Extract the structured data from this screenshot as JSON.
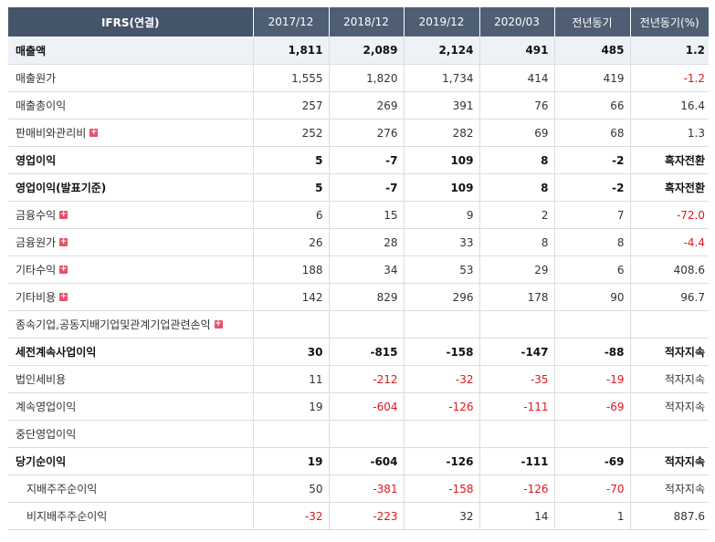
{
  "header": [
    "IFRS(연결)",
    "2017/12",
    "2018/12",
    "2019/12",
    "2020/03",
    "전년동기",
    "전년동기(%)"
  ],
  "rows": [
    {
      "label": "매출액",
      "bold": true,
      "expand": false,
      "sub": false,
      "values": [
        "1,811",
        "2,089",
        "2,124",
        "491",
        "485",
        "1.2"
      ]
    },
    {
      "label": "매출원가",
      "bold": false,
      "expand": false,
      "sub": false,
      "values": [
        "1,555",
        "1,820",
        "1,734",
        "414",
        "419",
        "-1.2"
      ]
    },
    {
      "label": "매출총이익",
      "bold": false,
      "expand": false,
      "sub": false,
      "values": [
        "257",
        "269",
        "391",
        "76",
        "66",
        "16.4"
      ]
    },
    {
      "label": "판매비와관리비",
      "bold": false,
      "expand": true,
      "sub": false,
      "values": [
        "252",
        "276",
        "282",
        "69",
        "68",
        "1.3"
      ]
    },
    {
      "label": "영업이익",
      "bold": true,
      "expand": false,
      "sub": false,
      "values": [
        "5",
        "-7",
        "109",
        "8",
        "-2",
        "흑자전환"
      ]
    },
    {
      "label": "영업이익(발표기준)",
      "bold": true,
      "expand": false,
      "sub": false,
      "values": [
        "5",
        "-7",
        "109",
        "8",
        "-2",
        "흑자전환"
      ]
    },
    {
      "label": "금융수익",
      "bold": false,
      "expand": true,
      "sub": false,
      "values": [
        "6",
        "15",
        "9",
        "2",
        "7",
        "-72.0"
      ]
    },
    {
      "label": "금융원가",
      "bold": false,
      "expand": true,
      "sub": false,
      "values": [
        "26",
        "28",
        "33",
        "8",
        "8",
        "-4.4"
      ]
    },
    {
      "label": "기타수익",
      "bold": false,
      "expand": true,
      "sub": false,
      "values": [
        "188",
        "34",
        "53",
        "29",
        "6",
        "408.6"
      ]
    },
    {
      "label": "기타비용",
      "bold": false,
      "expand": true,
      "sub": false,
      "values": [
        "142",
        "829",
        "296",
        "178",
        "90",
        "96.7"
      ]
    },
    {
      "label": "종속기업,공동지배기업및관계기업관련손익",
      "bold": false,
      "expand": true,
      "sub": false,
      "values": [
        "",
        "",
        "",
        "",
        "",
        ""
      ]
    },
    {
      "label": "세전계속사업이익",
      "bold": true,
      "expand": false,
      "sub": false,
      "values": [
        "30",
        "-815",
        "-158",
        "-147",
        "-88",
        "적자지속"
      ]
    },
    {
      "label": "법인세비용",
      "bold": false,
      "expand": false,
      "sub": false,
      "values": [
        "11",
        "-212",
        "-32",
        "-35",
        "-19",
        "적자지속"
      ]
    },
    {
      "label": "계속영업이익",
      "bold": false,
      "expand": false,
      "sub": false,
      "values": [
        "19",
        "-604",
        "-126",
        "-111",
        "-69",
        "적자지속"
      ]
    },
    {
      "label": "중단영업이익",
      "bold": false,
      "expand": false,
      "sub": false,
      "values": [
        "",
        "",
        "",
        "",
        "",
        ""
      ]
    },
    {
      "label": "당기순이익",
      "bold": true,
      "expand": false,
      "sub": false,
      "values": [
        "19",
        "-604",
        "-126",
        "-111",
        "-69",
        "적자지속"
      ]
    },
    {
      "label": "지배주주순이익",
      "bold": false,
      "expand": false,
      "sub": true,
      "values": [
        "50",
        "-381",
        "-158",
        "-126",
        "-70",
        "적자지속"
      ]
    },
    {
      "label": "비지배주주순이익",
      "bold": false,
      "expand": false,
      "sub": true,
      "values": [
        "-32",
        "-223",
        "32",
        "14",
        "1",
        "887.6"
      ]
    }
  ],
  "expand_icon": "plus-icon",
  "colors": {
    "header_bg": "#4f5f73",
    "negative": "#e0151b",
    "row_border": "#d9dde3"
  }
}
